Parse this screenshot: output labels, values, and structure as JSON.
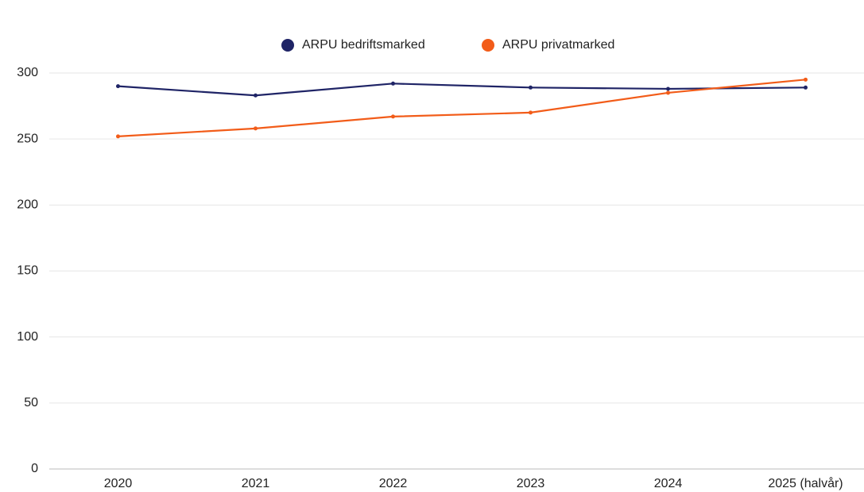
{
  "chart_data": {
    "type": "line",
    "categories": [
      "2020",
      "2021",
      "2022",
      "2023",
      "2024",
      "2025 (halvår)"
    ],
    "series": [
      {
        "name": "ARPU bedriftsmarked",
        "color": "#1f2466",
        "values": [
          290,
          283,
          292,
          289,
          288,
          289
        ]
      },
      {
        "name": "ARPU privatmarked",
        "color": "#f25c19",
        "values": [
          252,
          258,
          267,
          270,
          285,
          295
        ]
      }
    ],
    "ylim": [
      0,
      300
    ],
    "yticks": [
      0,
      50,
      100,
      150,
      200,
      250,
      300
    ],
    "grid": true,
    "legend": "top"
  }
}
